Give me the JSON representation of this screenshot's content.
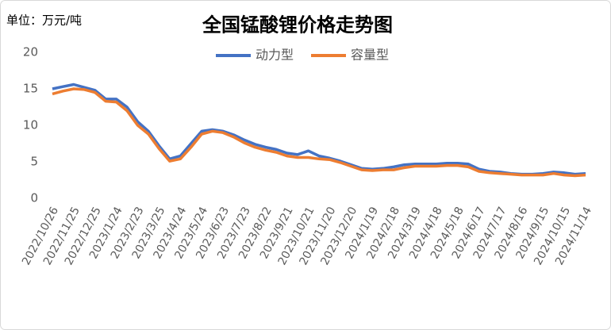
{
  "chart_data": {
    "type": "line",
    "title": "全国锰酸锂价格走势图",
    "y_label": "单位：万元/吨",
    "categories": [
      "2022/10/26",
      null,
      "2022/11/25",
      null,
      "2022/12/25",
      null,
      "2023/1/24",
      null,
      "2023/2/23",
      null,
      "2023/3/25",
      null,
      "2023/4/24",
      null,
      "2023/5/24",
      null,
      "2023/6/23",
      null,
      "2023/7/23",
      null,
      "2023/8/22",
      null,
      "2023/9/21",
      null,
      "2023/10/21",
      null,
      "2023/11/20",
      null,
      "2023/12/20",
      null,
      "2024/1/19",
      null,
      "2024/2/18",
      null,
      "2024/3/19",
      null,
      "2024/4/18",
      null,
      "2024/5/18",
      null,
      "2024/6/17",
      null,
      "2024/7/17",
      null,
      "2024/8/16",
      null,
      "2024/9/15",
      null,
      "2024/10/15",
      null,
      "2024/11/14"
    ],
    "series": [
      {
        "name": "动力型",
        "color": "#4472c4",
        "values": [
          15.0,
          15.3,
          15.6,
          15.2,
          14.8,
          13.6,
          13.6,
          12.5,
          10.5,
          9.2,
          7.2,
          5.4,
          5.8,
          7.5,
          9.2,
          9.4,
          9.2,
          8.7,
          8.0,
          7.4,
          7.0,
          6.7,
          6.2,
          6.0,
          6.5,
          5.8,
          5.5,
          5.1,
          4.6,
          4.1,
          4.0,
          4.1,
          4.3,
          4.6,
          4.7,
          4.7,
          4.7,
          4.8,
          4.8,
          4.7,
          4.0,
          3.7,
          3.6,
          3.4,
          3.3,
          3.3,
          3.4,
          3.6,
          3.5,
          3.3,
          3.4
        ]
      },
      {
        "name": "容量型",
        "color": "#ed7d31",
        "values": [
          14.3,
          14.7,
          15.0,
          14.9,
          14.5,
          13.3,
          13.2,
          12.0,
          10.0,
          8.8,
          6.8,
          5.1,
          5.4,
          7.0,
          8.8,
          9.2,
          9.0,
          8.4,
          7.6,
          7.0,
          6.6,
          6.3,
          5.8,
          5.6,
          5.6,
          5.4,
          5.3,
          4.9,
          4.4,
          3.9,
          3.8,
          3.9,
          3.9,
          4.2,
          4.4,
          4.4,
          4.4,
          4.5,
          4.5,
          4.3,
          3.7,
          3.5,
          3.4,
          3.3,
          3.2,
          3.2,
          3.2,
          3.4,
          3.2,
          3.1,
          3.2
        ]
      }
    ],
    "ylim": [
      0,
      20
    ],
    "yticks": [
      0,
      5,
      10,
      15,
      20
    ],
    "grid": false,
    "legend": "top"
  }
}
